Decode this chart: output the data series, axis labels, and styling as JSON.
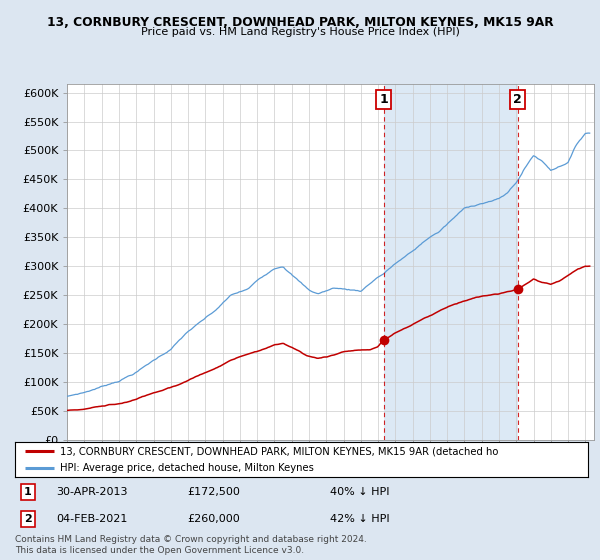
{
  "title_line1": "13, CORNBURY CRESCENT, DOWNHEAD PARK, MILTON KEYNES, MK15 9AR",
  "title_line2": "Price paid vs. HM Land Registry's House Price Index (HPI)",
  "ylabel_ticks": [
    "£0",
    "£50K",
    "£100K",
    "£150K",
    "£200K",
    "£250K",
    "£300K",
    "£350K",
    "£400K",
    "£450K",
    "£500K",
    "£550K",
    "£600K"
  ],
  "ytick_values": [
    0,
    50000,
    100000,
    150000,
    200000,
    250000,
    300000,
    350000,
    400000,
    450000,
    500000,
    550000,
    600000
  ],
  "ylim": [
    0,
    615000
  ],
  "xlim_start": 1995.0,
  "xlim_end": 2025.5,
  "hpi_color": "#5b9bd5",
  "price_color": "#c00000",
  "background_color": "#dce6f1",
  "plot_bg_color": "#ffffff",
  "shade_color": "#dce9f5",
  "marker1_year": 2013.33,
  "marker1_price": 172500,
  "marker1_label": "1",
  "marker2_year": 2021.09,
  "marker2_price": 260000,
  "marker2_label": "2",
  "legend_line1": "13, CORNBURY CRESCENT, DOWNHEAD PARK, MILTON KEYNES, MK15 9AR (detached ho",
  "legend_line2": "HPI: Average price, detached house, Milton Keynes",
  "note1_label": "1",
  "note1_date": "30-APR-2013",
  "note1_price": "£172,500",
  "note1_hpi": "40% ↓ HPI",
  "note2_label": "2",
  "note2_date": "04-FEB-2021",
  "note2_price": "£260,000",
  "note2_hpi": "42% ↓ HPI",
  "copyright": "Contains HM Land Registry data © Crown copyright and database right 2024.\nThis data is licensed under the Open Government Licence v3.0."
}
